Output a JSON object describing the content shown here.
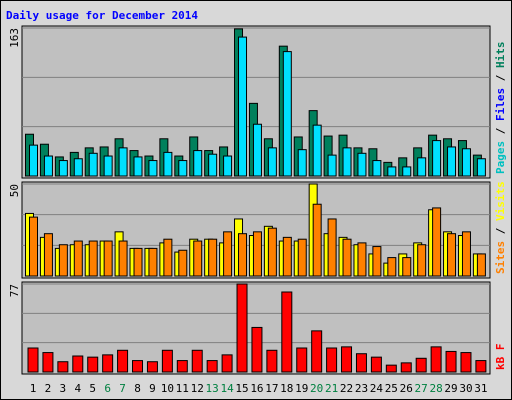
{
  "title": "Daily usage for December 2014",
  "chart_data": [
    {
      "type": "bar",
      "ylim": [
        0,
        163
      ],
      "yticks": [
        163
      ],
      "grid_divisions": 3,
      "legend": [
        "Pages",
        "Files",
        "Hits"
      ],
      "legend_colors": [
        "#00c0c0",
        "#0000ff",
        "#00805c"
      ],
      "legend_separator": " / ",
      "series": [
        {
          "color": "#00805c",
          "values": [
            46,
            35,
            21,
            26,
            31,
            32,
            41,
            28,
            22,
            41,
            22,
            43,
            28,
            32,
            162,
            80,
            41,
            143,
            43,
            72,
            44,
            45,
            31,
            30,
            15,
            20,
            31,
            45,
            41,
            39,
            23
          ]
        },
        {
          "color": "#00e0ff",
          "values": [
            34,
            22,
            17,
            19,
            25,
            22,
            31,
            21,
            17,
            26,
            17,
            28,
            24,
            22,
            153,
            57,
            31,
            137,
            29,
            56,
            23,
            31,
            25,
            17,
            10,
            10,
            20,
            39,
            32,
            30,
            19
          ]
        }
      ]
    },
    {
      "type": "bar",
      "ylim": [
        0,
        50
      ],
      "yticks": [
        50
      ],
      "grid_divisions": 3,
      "legend": [
        "Sites",
        "Visits"
      ],
      "legend_colors": [
        "#ff8000",
        "#ffff00"
      ],
      "legend_separator": " / ",
      "series": [
        {
          "color": "#ffff00",
          "values": [
            34,
            21,
            15,
            17,
            17,
            19,
            24,
            15,
            15,
            18,
            13,
            20,
            20,
            18,
            31,
            22,
            27,
            19,
            19,
            50,
            23,
            21,
            17,
            12,
            7,
            12,
            18,
            36,
            24,
            22,
            12
          ]
        },
        {
          "color": "#ff8000",
          "values": [
            32,
            23,
            17,
            19,
            19,
            19,
            19,
            15,
            15,
            20,
            14,
            19,
            20,
            24,
            23,
            24,
            26,
            21,
            20,
            39,
            31,
            20,
            18,
            16,
            10,
            10,
            17,
            37,
            23,
            24,
            12
          ]
        }
      ]
    },
    {
      "type": "bar",
      "ylim": [
        0,
        77
      ],
      "yticks": [
        77
      ],
      "grid_divisions": 3,
      "legend": [
        "kB F"
      ],
      "legend_colors": [
        "#ff0000"
      ],
      "legend_separator": " / ",
      "series": [
        {
          "color": "#ff0000",
          "values": [
            21,
            17,
            9,
            14,
            13,
            15,
            19,
            10,
            9,
            19,
            10,
            19,
            10,
            15,
            77,
            39,
            19,
            70,
            21,
            36,
            21,
            22,
            16,
            13,
            6,
            8,
            12,
            22,
            18,
            17,
            10
          ]
        }
      ],
      "categories": [
        "1",
        "2",
        "3",
        "4",
        "5",
        "6",
        "7",
        "8",
        "9",
        "10",
        "11",
        "12",
        "13",
        "14",
        "15",
        "16",
        "17",
        "18",
        "19",
        "20",
        "21",
        "22",
        "23",
        "24",
        "25",
        "26",
        "27",
        "28",
        "29",
        "30",
        "31"
      ],
      "category_colors": [
        "#000",
        "#000",
        "#000",
        "#000",
        "#000",
        "#008040",
        "#008040",
        "#000",
        "#000",
        "#000",
        "#000",
        "#000",
        "#008040",
        "#008040",
        "#000",
        "#000",
        "#000",
        "#000",
        "#000",
        "#008040",
        "#008040",
        "#000",
        "#000",
        "#000",
        "#000",
        "#000",
        "#008040",
        "#008040",
        "#000",
        "#000",
        "#000"
      ]
    }
  ]
}
